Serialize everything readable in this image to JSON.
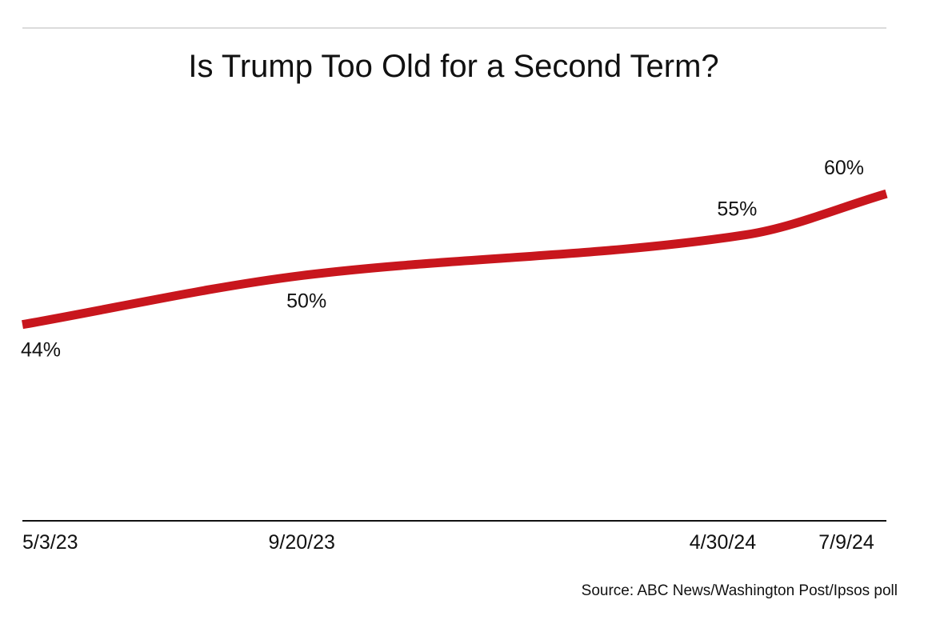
{
  "chart_data": {
    "type": "line",
    "title": "Is Trump Too Old for a Second Term?",
    "source": "Source: ABC News/Washington Post/Ipsos poll",
    "x": [
      "5/3/23",
      "9/20/23",
      "4/30/24",
      "7/9/24"
    ],
    "x_dates": [
      "2023-05-03",
      "2023-09-20",
      "2024-04-30",
      "2024-07-09"
    ],
    "series": [
      {
        "values": [
          44,
          50,
          55,
          60
        ],
        "data_labels": [
          "44%",
          "50%",
          "55%",
          "60%"
        ],
        "color": "#c8161d"
      }
    ],
    "ylim": [
      20,
      70
    ],
    "grid": false,
    "legend": "none"
  },
  "colors": {
    "line": "#c8161d",
    "rule": "#cfcfcf",
    "axis": "#111111",
    "text": "#111111"
  }
}
